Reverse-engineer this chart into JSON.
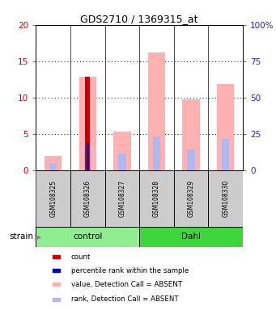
{
  "title": "GDS2710 / 1369315_at",
  "samples": [
    "GSM108325",
    "GSM108326",
    "GSM108327",
    "GSM108328",
    "GSM108329",
    "GSM108330"
  ],
  "groups": [
    "control",
    "control",
    "control",
    "Dahl",
    "Dahl",
    "Dahl"
  ],
  "control_color": "#90ee90",
  "dahl_color": "#3dd63d",
  "ylim_left": [
    0,
    20
  ],
  "ylim_right": [
    0,
    100
  ],
  "yticks_left": [
    0,
    5,
    10,
    15,
    20
  ],
  "ytick_labels_left": [
    "0",
    "5",
    "10",
    "15",
    "20"
  ],
  "yticks_right": [
    0,
    25,
    50,
    75,
    100
  ],
  "ytick_labels_right": [
    "0",
    "25",
    "50",
    "75",
    "100%"
  ],
  "value_absent": [
    2.0,
    12.8,
    5.3,
    16.2,
    9.7,
    11.9
  ],
  "rank_absent": [
    1.0,
    3.7,
    2.3,
    4.6,
    2.8,
    4.3
  ],
  "count": [
    0,
    12.8,
    0,
    0,
    0,
    0
  ],
  "percentile": [
    0,
    3.7,
    0,
    0,
    0,
    0
  ],
  "color_value_absent": "#ffb0b0",
  "color_rank_absent": "#b0b8f0",
  "color_count": "#cc0000",
  "color_percentile": "#0000cc",
  "left_axis_color": "#cc0000",
  "right_axis_color": "#2222cc",
  "bg_color": "#ffffff",
  "plot_bg": "#ffffff",
  "sample_box_color": "#cccccc",
  "legend_items": [
    [
      "#cc0000",
      "count"
    ],
    [
      "#0000cc",
      "percentile rank within the sample"
    ],
    [
      "#ffb0b0",
      "value, Detection Call = ABSENT"
    ],
    [
      "#b0b8f0",
      "rank, Detection Call = ABSENT"
    ]
  ]
}
